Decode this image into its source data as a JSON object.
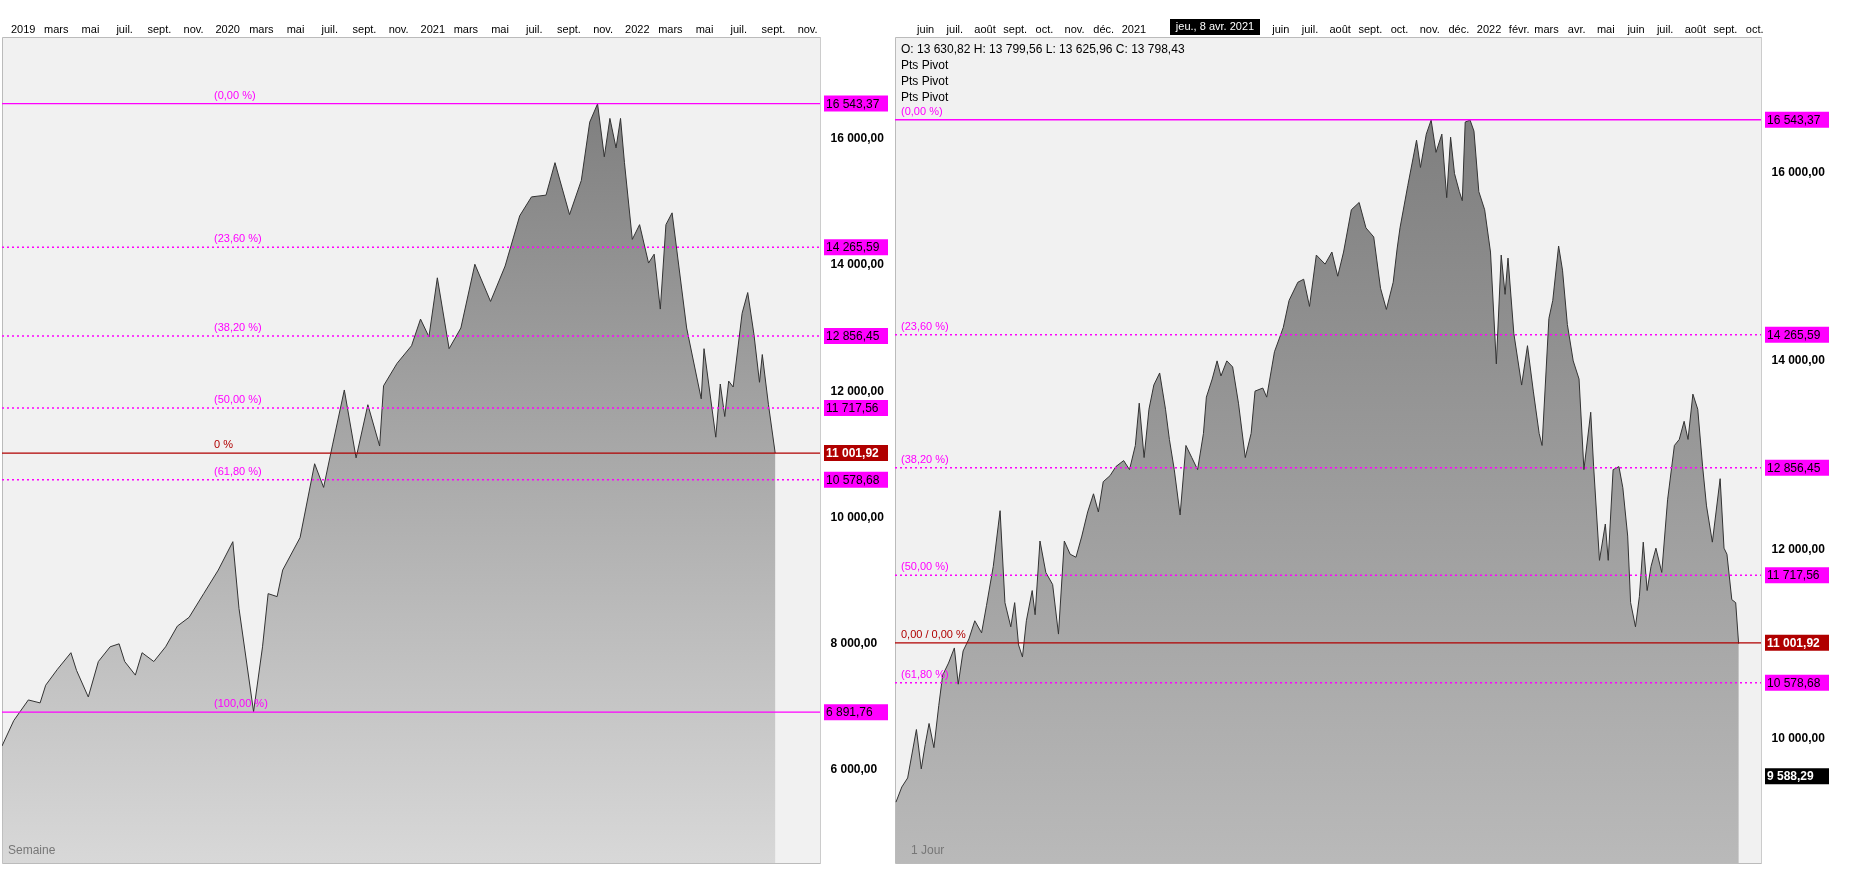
{
  "chart_data": [
    {
      "type": "area",
      "grid": false,
      "x": [
        "2018-11-25",
        "2018-12-16",
        "2019-01-11",
        "2019-02-01",
        "2019-02-11",
        "2019-03-04",
        "2019-03-28",
        "2019-04-07",
        "2019-04-28",
        "2019-05-16",
        "2019-06-06",
        "2019-06-22",
        "2019-07-02",
        "2019-07-21",
        "2019-08-02",
        "2019-08-23",
        "2019-09-13",
        "2019-10-04",
        "2019-10-25",
        "2019-11-20",
        "2019-12-16",
        "2020-01-11",
        "2020-01-22",
        "2020-02-17",
        "2020-03-04",
        "2020-03-14",
        "2020-03-30",
        "2020-04-09",
        "2020-05-10",
        "2020-06-05",
        "2020-06-21",
        "2020-07-07",
        "2020-07-28",
        "2020-08-18",
        "2020-09-08",
        "2020-09-29",
        "2020-10-06",
        "2020-10-30",
        "2020-11-25",
        "2020-12-11",
        "2020-12-26",
        "2021-01-10",
        "2021-01-31",
        "2021-02-21",
        "2021-03-18",
        "2021-04-15",
        "2021-05-11",
        "2021-06-06",
        "2021-06-27",
        "2021-07-23",
        "2021-08-08",
        "2021-09-03",
        "2021-09-24",
        "2021-10-09",
        "2021-10-23",
        "2021-11-04",
        "2021-11-14",
        "2021-11-25",
        "2021-12-03",
        "2021-12-10",
        "2021-12-24",
        "2022-01-06",
        "2022-01-22",
        "2022-02-01",
        "2022-02-12",
        "2022-02-22",
        "2022-03-05",
        "2022-03-31",
        "2022-04-26",
        "2022-05-01",
        "2022-05-22",
        "2022-05-30",
        "2022-06-07",
        "2022-06-14",
        "2022-06-22",
        "2022-07-08",
        "2022-07-18",
        "2022-07-29",
        "2022-08-08",
        "2022-08-13",
        "2022-08-24",
        "2022-09-05"
      ],
      "series": [
        {
          "color": "#333333",
          "values": [
            6356,
            6759,
            7086,
            7039,
            7320,
            7573,
            7835,
            7555,
            7133,
            7695,
            7929,
            7976,
            7695,
            7480,
            7835,
            7695,
            7929,
            8257,
            8397,
            8772,
            9146,
            9596,
            8538,
            6900,
            7929,
            8772,
            8725,
            9146,
            9661,
            10832,
            10457,
            11131,
            12002,
            10925,
            11768,
            11113,
            12068,
            12423,
            12704,
            13126,
            12845,
            13781,
            12657,
            12985,
            13996,
            13406,
            13968,
            14764,
            15064,
            15092,
            15607,
            14783,
            15326,
            16250,
            16540,
            15700,
            16309,
            15841,
            16309,
            15607,
            14390,
            14624,
            14015,
            14156,
            13285,
            14624,
            14811,
            12985,
            11862,
            12657,
            11253,
            12096,
            11581,
            12143,
            12049,
            13219,
            13547,
            12891,
            12124,
            12564,
            11768,
            11002
          ]
        }
      ],
      "xlim": [
        "2018-11-25",
        "2022-11-24"
      ],
      "ylim": [
        4500,
        17600
      ],
      "xticks": [
        {
          "value": "2019-01",
          "label": "2019"
        },
        {
          "value": "2019-03",
          "label": "mars"
        },
        {
          "value": "2019-05",
          "label": "mai"
        },
        {
          "value": "2019-07",
          "label": "juil."
        },
        {
          "value": "2019-09",
          "label": "sept."
        },
        {
          "value": "2019-11",
          "label": "nov."
        },
        {
          "value": "2020-01",
          "label": "2020"
        },
        {
          "value": "2020-03",
          "label": "mars"
        },
        {
          "value": "2020-05",
          "label": "mai"
        },
        {
          "value": "2020-07",
          "label": "juil."
        },
        {
          "value": "2020-09",
          "label": "sept."
        },
        {
          "value": "2020-11",
          "label": "nov."
        },
        {
          "value": "2021-01",
          "label": "2021"
        },
        {
          "value": "2021-03",
          "label": "mars"
        },
        {
          "value": "2021-05",
          "label": "mai"
        },
        {
          "value": "2021-07",
          "label": "juil."
        },
        {
          "value": "2021-09",
          "label": "sept."
        },
        {
          "value": "2021-11",
          "label": "nov."
        },
        {
          "value": "2022-01",
          "label": "2022"
        },
        {
          "value": "2022-03",
          "label": "mars"
        },
        {
          "value": "2022-05",
          "label": "mai"
        },
        {
          "value": "2022-07",
          "label": "juil."
        },
        {
          "value": "2022-09",
          "label": "sept."
        },
        {
          "value": "2022-11",
          "label": "nov."
        }
      ],
      "yticks": [
        {
          "value": 6000,
          "label": "6 000,00"
        },
        {
          "value": 8000,
          "label": "8 000,00"
        },
        {
          "value": 10000,
          "label": "10 000,00"
        },
        {
          "value": 12000,
          "label": "12 000,00"
        },
        {
          "value": 14000,
          "label": "14 000,00"
        },
        {
          "value": 16000,
          "label": "16 000,00"
        }
      ],
      "ref_lines": [
        {
          "axis": "y",
          "value": 16543.37,
          "label": "16 543,37",
          "color": "#ff00ff",
          "line_style": "solid"
        },
        {
          "axis": "y",
          "value": 14265.59,
          "label": "14 265,59",
          "color": "#ff00ff",
          "line_style": "dotted"
        },
        {
          "axis": "y",
          "value": 12856.45,
          "label": "12 856,45",
          "color": "#ff00ff",
          "line_style": "dotted"
        },
        {
          "axis": "y",
          "value": 11717.56,
          "label": "11 717,56",
          "color": "#ff00ff",
          "line_style": "dotted"
        },
        {
          "axis": "y",
          "value": 10578.68,
          "label": "10 578,68",
          "color": "#ff00ff",
          "line_style": "dotted"
        },
        {
          "axis": "y",
          "value": 6891.76,
          "label": "6 891,76",
          "color": "#ff00ff",
          "line_style": "solid"
        },
        {
          "axis": "y",
          "value": 11001.92,
          "label": "11 001,92",
          "color": "#b00000",
          "line_style": "solid"
        }
      ],
      "annotations": [
        "Semaine",
        {
          "text": "(0,00 %)",
          "y": 16543.37
        },
        {
          "text": "(23,60 %)",
          "y": 14265.59
        },
        {
          "text": "(38,20 %)",
          "y": 12856.45
        },
        {
          "text": "(50,00 %)",
          "y": 11717.56
        },
        {
          "text": "(61,80 %)",
          "y": 10578.68
        },
        {
          "text": "(100,00 %)",
          "y": 6891.76
        },
        {
          "text": "0 %",
          "y": 11001.92
        }
      ]
    },
    {
      "type": "area",
      "grid": false,
      "x": [
        "2020-05-02",
        "2020-05-08",
        "2020-05-14",
        "2020-05-23",
        "2020-05-28",
        "2020-06-01",
        "2020-06-05",
        "2020-06-10",
        "2020-06-15",
        "2020-06-19",
        "2020-06-25",
        "2020-07-01",
        "2020-07-05",
        "2020-07-10",
        "2020-07-16",
        "2020-07-22",
        "2020-07-29",
        "2020-08-03",
        "2020-08-10",
        "2020-08-17",
        "2020-08-22",
        "2020-08-28",
        "2020-09-01",
        "2020-09-05",
        "2020-09-09",
        "2020-09-13",
        "2020-09-19",
        "2020-09-22",
        "2020-09-27",
        "2020-10-03",
        "2020-10-10",
        "2020-10-16",
        "2020-10-22",
        "2020-10-28",
        "2020-11-03",
        "2020-11-09",
        "2020-11-15",
        "2020-11-21",
        "2020-11-26",
        "2020-12-01",
        "2020-12-08",
        "2020-12-14",
        "2020-12-22",
        "2020-12-28",
        "2021-01-03",
        "2021-01-07",
        "2021-01-12",
        "2021-01-17",
        "2021-01-22",
        "2021-01-28",
        "2021-02-03",
        "2021-02-07",
        "2021-02-12",
        "2021-02-18",
        "2021-02-24",
        "2021-03-02",
        "2021-03-08",
        "2021-03-14",
        "2021-03-17",
        "2021-03-23",
        "2021-03-28",
        "2021-04-01",
        "2021-04-07",
        "2021-04-13",
        "2021-04-19",
        "2021-04-26",
        "2021-05-02",
        "2021-05-06",
        "2021-05-14",
        "2021-05-18",
        "2021-05-26",
        "2021-06-04",
        "2021-06-10",
        "2021-06-19",
        "2021-06-25",
        "2021-07-01",
        "2021-07-08",
        "2021-07-17",
        "2021-07-24",
        "2021-07-30",
        "2021-08-05",
        "2021-08-13",
        "2021-08-21",
        "2021-08-28",
        "2021-09-05",
        "2021-09-12",
        "2021-09-18",
        "2021-09-25",
        "2021-09-29",
        "2021-10-02",
        "2021-10-10",
        "2021-10-19",
        "2021-10-23",
        "2021-10-29",
        "2021-11-03",
        "2021-11-08",
        "2021-11-14",
        "2021-11-19",
        "2021-11-23",
        "2021-11-27",
        "2021-12-02",
        "2021-12-05",
        "2021-12-08",
        "2021-12-13",
        "2021-12-17",
        "2021-12-22",
        "2021-12-28",
        "2022-01-03",
        "2022-01-09",
        "2022-01-14",
        "2022-01-18",
        "2022-01-21",
        "2022-01-27",
        "2022-02-04",
        "2022-02-10",
        "2022-02-16",
        "2022-02-22",
        "2022-02-25",
        "2022-03-04",
        "2022-03-08",
        "2022-03-14",
        "2022-03-18",
        "2022-03-23",
        "2022-03-29",
        "2022-04-04",
        "2022-04-09",
        "2022-04-16",
        "2022-04-19",
        "2022-04-25",
        "2022-05-01",
        "2022-05-04",
        "2022-05-09",
        "2022-05-15",
        "2022-05-19",
        "2022-05-24",
        "2022-05-27",
        "2022-06-01",
        "2022-06-05",
        "2022-06-09",
        "2022-06-13",
        "2022-06-17",
        "2022-06-22",
        "2022-06-28",
        "2022-07-04",
        "2022-07-11",
        "2022-07-16",
        "2022-07-21",
        "2022-07-25",
        "2022-07-30",
        "2022-08-04",
        "2022-08-09",
        "2022-08-13",
        "2022-08-19",
        "2022-08-27",
        "2022-08-31",
        "2022-09-03",
        "2022-09-08",
        "2022-09-12",
        "2022-09-15"
      ],
      "series": [
        {
          "color": "#333333",
          "values": [
            9315,
            9475,
            9571,
            10084,
            9667,
            9924,
            10148,
            9892,
            10340,
            10660,
            10788,
            10948,
            10564,
            10916,
            11044,
            11236,
            11108,
            11396,
            11812,
            12402,
            11428,
            11172,
            11428,
            10980,
            10852,
            11236,
            11556,
            11300,
            12081,
            11748,
            11620,
            11095,
            12081,
            11941,
            11909,
            12133,
            12389,
            12581,
            12389,
            12709,
            12773,
            12869,
            12933,
            12837,
            13093,
            13541,
            12965,
            13477,
            13733,
            13861,
            13477,
            13157,
            12837,
            12357,
            13093,
            12965,
            12837,
            13221,
            13605,
            13797,
            13989,
            13829,
            13989,
            13925,
            13541,
            12965,
            13221,
            13669,
            13701,
            13605,
            14086,
            14342,
            14630,
            14822,
            14854,
            14566,
            15110,
            15014,
            15142,
            14886,
            15142,
            15590,
            15667,
            15398,
            15302,
            14758,
            14534,
            14822,
            15174,
            15398,
            15846,
            16327,
            16038,
            16391,
            16540,
            16198,
            16391,
            15718,
            16359,
            15974,
            15782,
            15686,
            16519,
            16540,
            16423,
            15782,
            15590,
            15142,
            13957,
            15110,
            14694,
            15078,
            14278,
            13733,
            14150,
            13669,
            13221,
            13093,
            14438,
            14630,
            15206,
            14950,
            14374,
            13989,
            13797,
            12837,
            13445,
            12869,
            11876,
            12261,
            11876,
            12837,
            12869,
            12645,
            12133,
            11428,
            11172,
            11492,
            12069,
            11556,
            11812,
            12005,
            11748,
            12517,
            13093,
            13157,
            13349,
            13157,
            13637,
            13477,
            12869,
            12453,
            12069,
            12741,
            12005,
            11941,
            11460,
            11428,
            10993
          ]
        }
      ],
      "xlim": [
        "2020-05-01",
        "2022-10-08"
      ],
      "ylim": [
        8670,
        17420
      ],
      "xticks": [
        {
          "value": "2020-06",
          "label": "juin"
        },
        {
          "value": "2020-07",
          "label": "juil."
        },
        {
          "value": "2020-08",
          "label": "août"
        },
        {
          "value": "2020-09",
          "label": "sept."
        },
        {
          "value": "2020-10",
          "label": "oct."
        },
        {
          "value": "2020-11",
          "label": "nov."
        },
        {
          "value": "2020-12",
          "label": "déc."
        },
        {
          "value": "2021-01",
          "label": "2021"
        },
        {
          "value": "2021-06",
          "label": "juin"
        },
        {
          "value": "2021-07",
          "label": "juil."
        },
        {
          "value": "2021-08",
          "label": "août"
        },
        {
          "value": "2021-09",
          "label": "sept."
        },
        {
          "value": "2021-10",
          "label": "oct."
        },
        {
          "value": "2021-11",
          "label": "nov."
        },
        {
          "value": "2021-12",
          "label": "déc."
        },
        {
          "value": "2022-01",
          "label": "2022"
        },
        {
          "value": "2022-02",
          "label": "févr."
        },
        {
          "value": "2022-03",
          "label": "mars"
        },
        {
          "value": "2022-04",
          "label": "avr."
        },
        {
          "value": "2022-05",
          "label": "mai"
        },
        {
          "value": "2022-06",
          "label": "juin"
        },
        {
          "value": "2022-07",
          "label": "juil."
        },
        {
          "value": "2022-08",
          "label": "août"
        },
        {
          "value": "2022-09",
          "label": "sept."
        },
        {
          "value": "2022-10",
          "label": "oct."
        }
      ],
      "yticks": [
        {
          "value": 10000,
          "label": "10 000,00"
        },
        {
          "value": 12000,
          "label": "12 000,00"
        },
        {
          "value": 14000,
          "label": "14 000,00"
        },
        {
          "value": 16000,
          "label": "16 000,00"
        }
      ],
      "ref_lines": [
        {
          "axis": "y",
          "value": 16543.37,
          "label": "16 543,37",
          "color": "#ff00ff",
          "line_style": "solid"
        },
        {
          "axis": "y",
          "value": 14265.59,
          "label": "14 265,59",
          "color": "#ff00ff",
          "line_style": "dotted"
        },
        {
          "axis": "y",
          "value": 12856.45,
          "label": "12 856,45",
          "color": "#ff00ff",
          "line_style": "dotted"
        },
        {
          "axis": "y",
          "value": 11717.56,
          "label": "11 717,56",
          "color": "#ff00ff",
          "line_style": "dotted"
        },
        {
          "axis": "y",
          "value": 10578.68,
          "label": "10 578,68",
          "color": "#ff00ff",
          "line_style": "dotted"
        },
        {
          "axis": "y",
          "value": 11001.92,
          "label": "11 001,92",
          "color": "#b00000",
          "line_style": "solid"
        }
      ],
      "annotations": [
        "O: 13 630,82   H: 13 799,56   L: 13 625,96   C: 13 798,43",
        "Pts Pivot",
        "Pts Pivot",
        "Pts Pivot",
        "jeu., 8 avr. 2021",
        "9 588,29",
        "1 Jour",
        {
          "text": "(0,00 %)",
          "y": 16543.37
        },
        {
          "text": "(23,60 %)",
          "y": 14265.59
        },
        {
          "text": "(38,20 %)",
          "y": 12856.45
        },
        {
          "text": "(50,00 %)",
          "y": 11717.56
        },
        {
          "text": "(61,80 %)",
          "y": 10578.68
        },
        {
          "text": "0,00 / 0,00 %",
          "y": 11001.92
        }
      ]
    }
  ]
}
